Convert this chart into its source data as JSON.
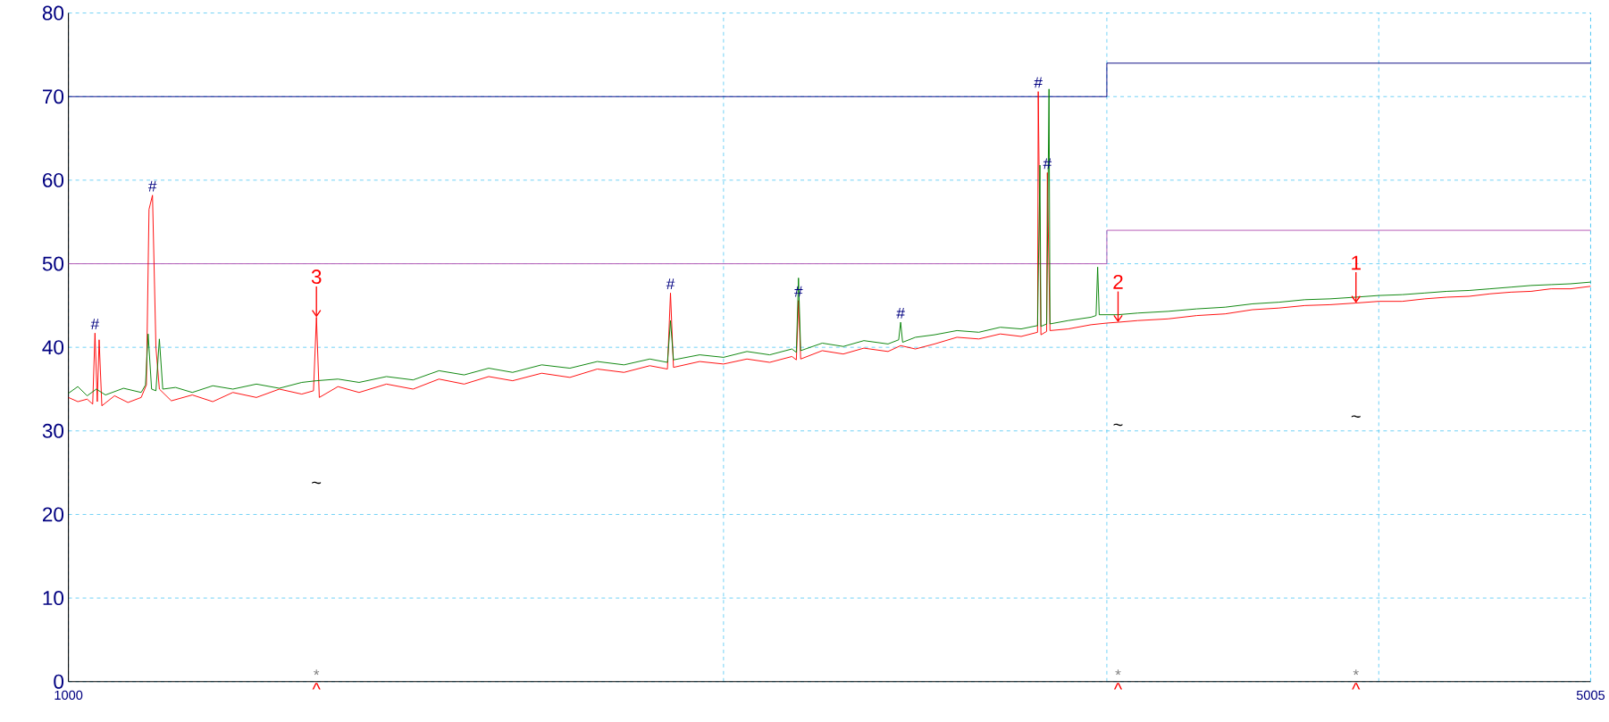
{
  "chart_data": {
    "type": "line",
    "log": "x",
    "grid": true,
    "xlim": [
      1000,
      5005
    ],
    "ylim": [
      0,
      80
    ],
    "xticks": [
      1000,
      {
        "value": 2000,
        "label": null
      },
      {
        "value": 3000,
        "label": null
      },
      {
        "value": 4000,
        "label": null
      },
      5005
    ],
    "yticks": [
      0,
      10,
      20,
      30,
      40,
      50,
      60,
      70,
      80
    ],
    "series": [
      {
        "color": "#000080",
        "x": [
          1000,
          3000,
          3000,
          5005
        ],
        "values": [
          70,
          70,
          74,
          74
        ]
      },
      {
        "color": "#b050b0",
        "x": [
          1000,
          3000,
          3000,
          5005
        ],
        "values": [
          50,
          50,
          54,
          54
        ]
      },
      {
        "color": "#ff0000",
        "x": [
          1000,
          1010,
          1020,
          1026,
          1028.5,
          1031,
          1033,
          1036,
          1050,
          1065,
          1080,
          1086,
          1089,
          1093,
          1097,
          1101,
          1115,
          1140,
          1165,
          1190,
          1220,
          1250,
          1280,
          1296,
          1300,
          1304,
          1330,
          1360,
          1400,
          1440,
          1480,
          1520,
          1560,
          1600,
          1650,
          1700,
          1750,
          1800,
          1850,
          1885,
          1891,
          1897,
          1950,
          2000,
          2050,
          2100,
          2150,
          2160,
          2165,
          2170,
          2220,
          2270,
          2320,
          2380,
          2412,
          2450,
          2500,
          2560,
          2620,
          2680,
          2740,
          2788,
          2790,
          2798,
          2815,
          2817,
          2825,
          2880,
          2950,
          3000,
          3036,
          3100,
          3200,
          3300,
          3400,
          3500,
          3600,
          3700,
          3800,
          3905,
          4000,
          4100,
          4200,
          4300,
          4400,
          4500,
          4600,
          4700,
          4800,
          4900,
          5005
        ],
        "values": [
          34.0,
          33.5,
          33.8,
          33.2,
          41.7,
          33.5,
          40.9,
          33.0,
          34.2,
          33.4,
          34.0,
          35.5,
          56.5,
          58.2,
          40.0,
          35.0,
          33.6,
          34.3,
          33.5,
          34.6,
          34.0,
          35.0,
          34.4,
          34.8,
          43.6,
          34.0,
          35.3,
          34.6,
          35.6,
          35.0,
          36.2,
          35.6,
          36.5,
          36.0,
          36.9,
          36.4,
          37.4,
          37.0,
          37.8,
          37.4,
          46.5,
          37.6,
          38.3,
          38.0,
          38.6,
          38.2,
          38.9,
          38.5,
          45.6,
          38.6,
          39.6,
          39.2,
          39.9,
          39.5,
          40.2,
          39.8,
          40.4,
          41.2,
          41.0,
          41.6,
          41.3,
          41.8,
          70.6,
          41.5,
          41.9,
          60.9,
          42.0,
          42.2,
          42.7,
          42.9,
          43.0,
          43.2,
          43.4,
          43.8,
          44.0,
          44.5,
          44.7,
          45.0,
          45.1,
          45.3,
          45.5,
          45.5,
          45.8,
          46.0,
          46.1,
          46.4,
          46.6,
          46.7,
          47.0,
          47.0,
          47.3
        ]
      },
      {
        "color": "#008000",
        "x": [
          1000,
          1010,
          1020,
          1030,
          1040,
          1060,
          1080,
          1085,
          1088,
          1092,
          1097,
          1101,
          1105,
          1120,
          1140,
          1165,
          1190,
          1220,
          1250,
          1280,
          1300,
          1330,
          1360,
          1400,
          1440,
          1480,
          1520,
          1560,
          1600,
          1650,
          1700,
          1750,
          1800,
          1850,
          1885,
          1891,
          1897,
          1950,
          2000,
          2050,
          2100,
          2150,
          2160,
          2165,
          2170,
          2220,
          2270,
          2320,
          2380,
          2407,
          2412,
          2417,
          2450,
          2500,
          2560,
          2620,
          2680,
          2740,
          2788,
          2795,
          2798,
          2815,
          2822,
          2825,
          2880,
          2950,
          2966,
          2971,
          2976,
          3036,
          3100,
          3200,
          3300,
          3400,
          3500,
          3600,
          3700,
          3800,
          3905,
          4000,
          4100,
          4200,
          4300,
          4400,
          4500,
          4600,
          4700,
          4800,
          4900,
          5005
        ],
        "values": [
          34.5,
          35.3,
          34.2,
          35.0,
          34.3,
          35.1,
          34.6,
          35.5,
          41.6,
          35.0,
          34.8,
          41.0,
          35.0,
          35.2,
          34.6,
          35.4,
          35.0,
          35.6,
          35.1,
          35.8,
          36.0,
          36.2,
          35.8,
          36.5,
          36.1,
          37.2,
          36.7,
          37.5,
          37.0,
          37.9,
          37.5,
          38.3,
          37.9,
          38.6,
          38.2,
          43.2,
          38.5,
          39.1,
          38.8,
          39.5,
          39.1,
          39.8,
          39.4,
          48.3,
          39.6,
          40.5,
          40.1,
          40.8,
          40.4,
          40.9,
          43.0,
          40.6,
          41.2,
          41.5,
          42.0,
          41.8,
          42.4,
          42.2,
          42.6,
          61.8,
          42.5,
          42.8,
          70.9,
          42.8,
          43.2,
          43.6,
          43.8,
          49.6,
          43.9,
          43.9,
          44.1,
          44.3,
          44.6,
          44.8,
          45.2,
          45.4,
          45.7,
          45.8,
          46.0,
          46.2,
          46.3,
          46.5,
          46.7,
          46.8,
          47.0,
          47.2,
          47.4,
          47.5,
          47.6,
          47.8
        ]
      }
    ],
    "annotations": [
      {
        "text": "#",
        "x": 1028.5,
        "y": 41.7
      },
      {
        "text": "#",
        "x": 1093,
        "y": 58.2
      },
      {
        "text": "#",
        "x": 1891,
        "y": 46.5
      },
      {
        "text": "#",
        "x": 2165,
        "y": 45.6
      },
      {
        "text": "#",
        "x": 2412,
        "y": 43.0
      },
      {
        "text": "#",
        "x": 2790,
        "y": 70.6
      },
      {
        "text": "#",
        "x": 2817,
        "y": 60.9
      },
      {
        "text": "3",
        "x": 1300,
        "y": 43.6
      },
      {
        "text": "2",
        "x": 3036,
        "y": 43.0
      },
      {
        "text": "1",
        "x": 3905,
        "y": 45.3
      },
      "~",
      "~",
      "~",
      "*",
      "*",
      "*",
      "^",
      "^",
      "^"
    ]
  }
}
